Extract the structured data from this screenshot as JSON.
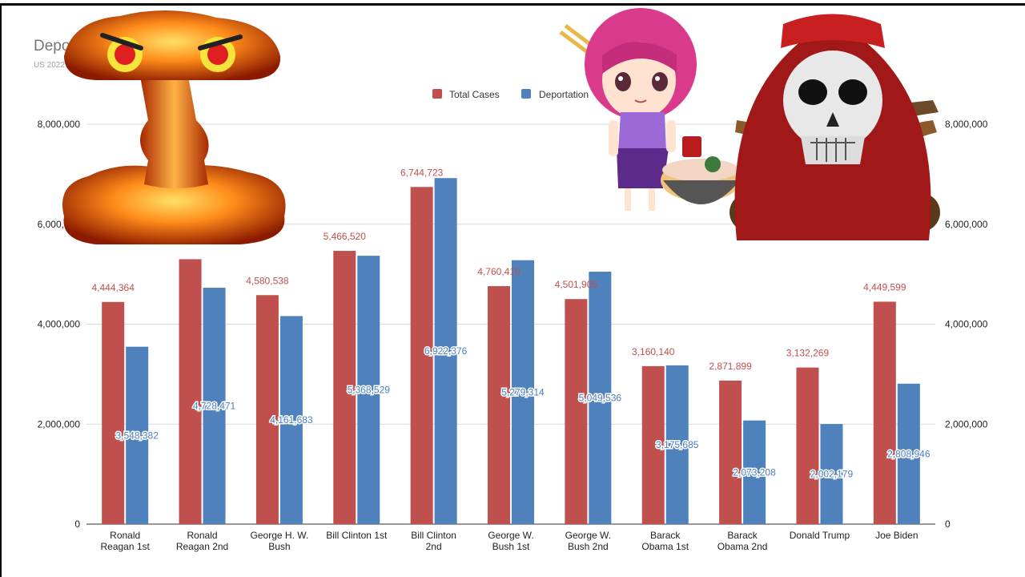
{
  "chart_data": {
    "type": "bar",
    "title": "Deportations (1981-2022)",
    "subtitle": "US 2022 ... meland Security",
    "categories": [
      [
        "Ronald",
        "Reagan 1st"
      ],
      [
        "Ronald",
        "Reagan 2nd"
      ],
      [
        "George H. W.",
        "Bush"
      ],
      [
        "Bill Clinton 1st"
      ],
      [
        "Bill Clinton",
        "2nd"
      ],
      [
        "George W.",
        "Bush 1st"
      ],
      [
        "George W.",
        "Bush 2nd"
      ],
      [
        "Barack",
        "Obama 1st"
      ],
      [
        "Barack",
        "Obama 2nd"
      ],
      [
        "Donald Trump"
      ],
      [
        "Joe Biden"
      ]
    ],
    "series": [
      {
        "name": "Total Cases",
        "color": "#c0504d",
        "values": [
          4444364,
          5300000,
          4580538,
          5466520,
          6744723,
          4760410,
          4501905,
          3160140,
          2871899,
          3132269,
          4449599
        ],
        "labels": [
          "4,444,364",
          "",
          "4,580,538",
          "5,466,520",
          "6,744,723",
          "4,760,410",
          "4,501,905",
          "3,160,140",
          "2,871,899",
          "3,132,269",
          "4,449,599"
        ]
      },
      {
        "name": "Deportation",
        "color": "#4f81bd",
        "values": [
          3548382,
          4728471,
          4161683,
          5368529,
          6922376,
          5279314,
          5049536,
          3175685,
          2073208,
          2002179,
          2808946
        ],
        "labels": [
          "3,548,382",
          "4,728,471",
          "4,161,683",
          "5,368,529",
          "6,922,376",
          "5,279,314",
          "5,049,536",
          "3,175,685",
          "2,073,208",
          "2,002,179",
          "2,808,946"
        ]
      }
    ],
    "y_ticks": [
      "0",
      "2,000,000",
      "4,000,000",
      "6,000,000",
      "8,000,000"
    ],
    "y_tick_values": [
      0,
      2000000,
      4000000,
      6000000,
      8000000
    ],
    "ylim": [
      0,
      8000000
    ],
    "grid": true,
    "legend": "top-center",
    "xlabel": "",
    "ylabel": ""
  },
  "overlays": {
    "explosion": "mushroom-cloud-sticker",
    "anime_girl": "anime-girl-with-ramen-sticker",
    "skull": "pirate-skull-crossed-pistols-sticker"
  }
}
